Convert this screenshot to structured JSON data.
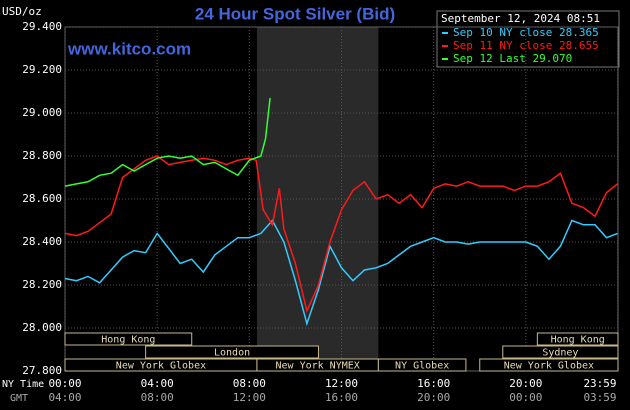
{
  "chart_data": {
    "type": "line",
    "title": "24 Hour Spot Silver (Bid)",
    "website": "www.kitco.com",
    "y_label": "USD/oz",
    "timestamp": "September 12, 2024 08:51",
    "x_label": "NY Time",
    "x2_label": "GMT",
    "xlim": [
      0,
      24
    ],
    "ylim": [
      27.8,
      29.4
    ],
    "xticks": [
      {
        "value": 0,
        "label": "00:00"
      },
      {
        "value": 4,
        "label": "04:00"
      },
      {
        "value": 8,
        "label": "08:00"
      },
      {
        "value": 12,
        "label": "12:00"
      },
      {
        "value": 16,
        "label": "16:00"
      },
      {
        "value": 20,
        "label": "20:00"
      },
      {
        "value": 23.983,
        "label": "23:59"
      }
    ],
    "gmt_labels": [
      "04:00",
      "08:00",
      "12:00",
      "16:00",
      "20:00",
      "00:00",
      "03:59"
    ],
    "yticks": [
      {
        "value": 27.8,
        "label": "27.800"
      },
      {
        "value": 28.0,
        "label": "28.000"
      },
      {
        "value": 28.2,
        "label": "28.200"
      },
      {
        "value": 28.4,
        "label": "28.400"
      },
      {
        "value": 28.6,
        "label": "28.600"
      },
      {
        "value": 28.8,
        "label": "28.800"
      },
      {
        "value": 29.0,
        "label": "29.000"
      },
      {
        "value": 29.2,
        "label": "29.200"
      },
      {
        "value": 29.4,
        "label": "29.400"
      }
    ],
    "grid": true,
    "series": [
      {
        "name": "Sep 10 NY close 28.365",
        "color": "#33ccff",
        "x": [
          0,
          0.5,
          1,
          1.5,
          2,
          2.5,
          3,
          3.5,
          4,
          4.5,
          5,
          5.5,
          6,
          6.5,
          7,
          7.5,
          8,
          8.5,
          9,
          9.5,
          10,
          10.5,
          11,
          11.5,
          12,
          12.5,
          13,
          13.5,
          14,
          14.5,
          15,
          15.5,
          16,
          16.5,
          17,
          17.5,
          18,
          18.5,
          19,
          19.5,
          20,
          20.5,
          21,
          21.5,
          22,
          22.5,
          23,
          23.5,
          23.98
        ],
        "values": [
          28.23,
          28.22,
          28.24,
          28.21,
          28.27,
          28.33,
          28.36,
          28.35,
          28.44,
          28.37,
          28.3,
          28.32,
          28.26,
          28.34,
          28.38,
          28.42,
          28.42,
          28.44,
          28.5,
          28.4,
          28.22,
          28.02,
          28.18,
          28.38,
          28.28,
          28.22,
          28.27,
          28.28,
          28.3,
          28.34,
          28.38,
          28.4,
          28.42,
          28.4,
          28.4,
          28.39,
          28.4,
          28.4,
          28.4,
          28.4,
          28.4,
          28.38,
          28.32,
          28.38,
          28.5,
          28.48,
          28.48,
          28.42,
          28.44
        ]
      },
      {
        "name": "Sep 11 NY close 28.655",
        "color": "#ff1a1a",
        "x": [
          0,
          0.5,
          1,
          1.5,
          2,
          2.5,
          3,
          3.5,
          4,
          4.5,
          5,
          5.5,
          6,
          6.5,
          7,
          7.5,
          8,
          8.3,
          8.6,
          9,
          9.3,
          9.5,
          10,
          10.5,
          11,
          11.5,
          12,
          12.5,
          13,
          13.5,
          14,
          14.5,
          15,
          15.5,
          16,
          16.5,
          17,
          17.5,
          18,
          18.5,
          19,
          19.5,
          20,
          20.5,
          21,
          21.5,
          22,
          22.5,
          23,
          23.5,
          23.98
        ],
        "values": [
          28.44,
          28.43,
          28.45,
          28.49,
          28.53,
          28.7,
          28.74,
          28.78,
          28.8,
          28.76,
          28.77,
          28.78,
          28.79,
          28.78,
          28.76,
          28.78,
          28.79,
          28.78,
          28.55,
          28.48,
          28.65,
          28.46,
          28.3,
          28.08,
          28.2,
          28.4,
          28.55,
          28.64,
          28.68,
          28.6,
          28.62,
          28.58,
          28.62,
          28.56,
          28.65,
          28.67,
          28.66,
          28.68,
          28.66,
          28.66,
          28.66,
          28.64,
          28.66,
          28.66,
          28.68,
          28.72,
          28.58,
          28.56,
          28.52,
          28.63,
          28.67
        ]
      },
      {
        "name": "Sep 12 Last 29.070",
        "color": "#33ff33",
        "x": [
          0,
          0.5,
          1,
          1.5,
          2,
          2.5,
          3,
          3.5,
          4,
          4.5,
          5,
          5.5,
          6,
          6.5,
          7,
          7.5,
          8,
          8.5,
          8.7,
          8.9
        ],
        "values": [
          28.66,
          28.67,
          28.68,
          28.71,
          28.72,
          28.76,
          28.73,
          28.76,
          28.79,
          28.8,
          28.79,
          28.8,
          28.76,
          28.77,
          28.74,
          28.71,
          28.78,
          28.8,
          28.88,
          29.07
        ]
      }
    ],
    "sessions": [
      [
        {
          "label": "Hong Kong",
          "start": 0,
          "end": 5.5
        },
        {
          "label": "Hong Kong",
          "start": 20.5,
          "end": 24
        }
      ],
      [
        {
          "label": "London",
          "start": 3.5,
          "end": 11
        },
        {
          "label": "Sydney",
          "start": 19,
          "end": 24
        }
      ],
      [
        {
          "label": "New York Globex",
          "start": 0,
          "end": 8.33
        },
        {
          "label": "New York NYMEX",
          "start": 8.33,
          "end": 13.6
        },
        {
          "label": "NY Globex",
          "start": 13.6,
          "end": 17.4
        },
        {
          "label": "New York Globex",
          "start": 18,
          "end": 24
        }
      ]
    ]
  }
}
